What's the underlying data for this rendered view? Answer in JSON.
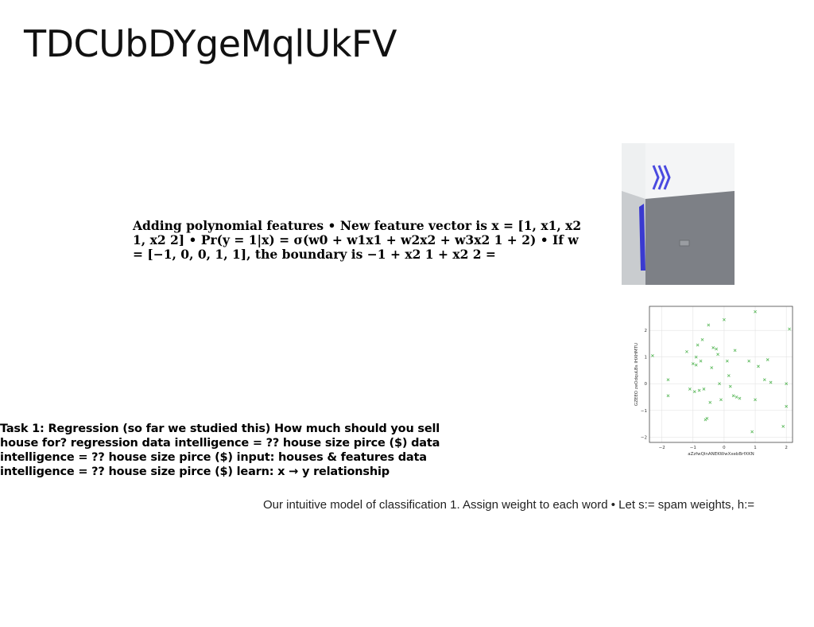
{
  "slide": {
    "title": "TDCUbDYgeMqlUkFV",
    "poly_text": "Adding polynomial features • New feature vector is x = [1, x1, x2 1, x2 2] • Pr(y = 1|x) = σ(w0 + w1x1 + w2x2 + w3x2 1 + 2) • If w = [−1, 0, 0, 1, 1], the boundary is −1 + x2 1 + x2 2 =",
    "task_text": "Task 1: Regression (so far we studied this) How much should you sell house for? regression data intelligence = ?? house size pirce ($) data intelligence = ?? house size pirce ($) input: houses & features data intelligence = ?? house size pirce ($) learn: x → y relationship",
    "model_text": "Our intuitive model of classification 1. Assign weight to each word • Let s:= spam weights, h:="
  },
  "colors": {
    "marker": "#59b859",
    "accent_blue": "#3a3ad0"
  },
  "chart_data": {
    "type": "scatter",
    "xlabel": "aZzfwQlnANEKWwXxebBrfXKN",
    "ylabel": "GZEEO zeOdquLBs IHXHMTU",
    "xlim": [
      -2.4,
      2.2
    ],
    "ylim": [
      -2.2,
      2.9
    ],
    "xticks": [
      "−2",
      "−1",
      "0",
      "1",
      "2"
    ],
    "yticks": [
      "−2",
      "−1",
      "0",
      "1",
      "2"
    ],
    "grid": true,
    "marker": "x",
    "points": [
      {
        "x": -2.3,
        "y": 1.05
      },
      {
        "x": -1.8,
        "y": 0.15
      },
      {
        "x": -1.8,
        "y": -0.45
      },
      {
        "x": -1.2,
        "y": 1.2
      },
      {
        "x": -1.1,
        "y": -0.2
      },
      {
        "x": -1.0,
        "y": 0.75
      },
      {
        "x": -0.95,
        "y": -0.3
      },
      {
        "x": -0.9,
        "y": 0.7
      },
      {
        "x": -0.9,
        "y": 1.0
      },
      {
        "x": -0.85,
        "y": 1.45
      },
      {
        "x": -0.8,
        "y": -0.25
      },
      {
        "x": -0.75,
        "y": 0.85
      },
      {
        "x": -0.7,
        "y": 1.65
      },
      {
        "x": -0.65,
        "y": -0.2
      },
      {
        "x": -0.6,
        "y": -1.35
      },
      {
        "x": -0.55,
        "y": -1.3
      },
      {
        "x": -0.5,
        "y": 2.2
      },
      {
        "x": -0.45,
        "y": -0.7
      },
      {
        "x": -0.4,
        "y": 0.6
      },
      {
        "x": -0.35,
        "y": 1.35
      },
      {
        "x": -0.25,
        "y": 1.3
      },
      {
        "x": -0.2,
        "y": 1.1
      },
      {
        "x": -0.15,
        "y": 0.0
      },
      {
        "x": -0.1,
        "y": -0.6
      },
      {
        "x": 0.0,
        "y": 2.4
      },
      {
        "x": 0.1,
        "y": 0.85
      },
      {
        "x": 0.15,
        "y": 0.3
      },
      {
        "x": 0.2,
        "y": -0.1
      },
      {
        "x": 0.3,
        "y": -0.45
      },
      {
        "x": 0.35,
        "y": 1.25
      },
      {
        "x": 0.4,
        "y": -0.5
      },
      {
        "x": 0.5,
        "y": -0.55
      },
      {
        "x": 0.8,
        "y": 0.85
      },
      {
        "x": 0.9,
        "y": -1.8
      },
      {
        "x": 1.0,
        "y": 2.7
      },
      {
        "x": 1.0,
        "y": -0.6
      },
      {
        "x": 1.1,
        "y": 0.65
      },
      {
        "x": 1.3,
        "y": 0.15
      },
      {
        "x": 1.4,
        "y": 0.9
      },
      {
        "x": 1.5,
        "y": 0.05
      },
      {
        "x": 1.9,
        "y": -1.6
      },
      {
        "x": 2.0,
        "y": 0.0
      },
      {
        "x": 2.0,
        "y": -0.85
      },
      {
        "x": 2.1,
        "y": 2.05
      }
    ]
  }
}
